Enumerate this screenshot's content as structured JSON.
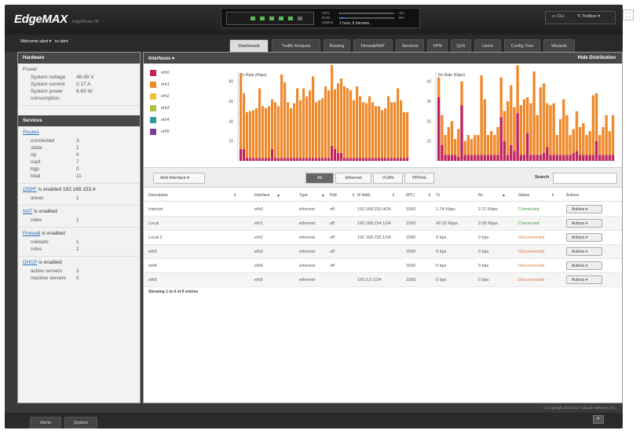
{
  "app": {
    "brand": "EdgeMAX",
    "model": "EdgeRouter 6P"
  },
  "status": {
    "ports": [
      true,
      true,
      true,
      true,
      true,
      false
    ],
    "cpu_label": "CPU",
    "cpu_pct": "1%",
    "cpu_fill": 0.01,
    "ram_label": "RAM",
    "ram_pct": "9%",
    "ram_fill": 0.09,
    "uptime_label": "Uptime",
    "uptime_value": "1 hour, 6 minutes"
  },
  "tools": {
    "cli": "CLI",
    "toolbox": "Toolbox"
  },
  "nav": {
    "welcome": "Welcome ubnt",
    "to": "to ubnt",
    "tabs": [
      "Dashboard",
      "Traffic Analysis",
      "Routing",
      "Firewall/NAT",
      "Services",
      "VPN",
      "QoS",
      "Users",
      "Config Tree",
      "Wizards"
    ],
    "active": "Dashboard"
  },
  "sidebar": {
    "hardware_title": "Hardware",
    "power_title": "Power",
    "power": [
      {
        "k": "System voltage",
        "v": "48.49 V"
      },
      {
        "k": "System current",
        "v": "0.17 A"
      },
      {
        "k": "System power",
        "v": "8.63 W"
      },
      {
        "k": "consumption",
        "v": ""
      }
    ],
    "services_title": "Services",
    "routes_title": "Routes",
    "routes": [
      {
        "k": "connected",
        "v": "3"
      },
      {
        "k": "static",
        "v": "1"
      },
      {
        "k": "rip",
        "v": "0"
      },
      {
        "k": "ospf",
        "v": "7"
      },
      {
        "k": "bgp",
        "v": "0"
      },
      {
        "k": "total",
        "v": "11"
      }
    ],
    "ospf_link": "OSPF",
    "ospf_text": "is enabled",
    "ospf_ip": "192.168.153.4",
    "ospf_rows": [
      {
        "k": "areas",
        "v": "1"
      }
    ],
    "nat_link": "NAT",
    "nat_text": "is enabled",
    "nat_rows": [
      {
        "k": "rules",
        "v": "1"
      }
    ],
    "fw_link": "Firewall",
    "fw_text": "is enabled",
    "fw_rows": [
      {
        "k": "rulesets",
        "v": "1"
      },
      {
        "k": "rules",
        "v": "2"
      }
    ],
    "dhcp_link": "DHCP",
    "dhcp_text": "is enabled",
    "dhcp_rows": [
      {
        "k": "active servers",
        "v": "2"
      },
      {
        "k": "inactive servers",
        "v": "0"
      }
    ]
  },
  "interfaces": {
    "title": "Interfaces",
    "hide": "Hide Distribution",
    "legend": [
      {
        "name": "eth0",
        "color": "#c0245c"
      },
      {
        "name": "eth1",
        "color": "#ee8a2e"
      },
      {
        "name": "eth2",
        "color": "#f0c23c"
      },
      {
        "name": "eth3",
        "color": "#a9c23f"
      },
      {
        "name": "eth4",
        "color": "#2a9d9a"
      },
      {
        "name": "eth5",
        "color": "#7b3f9a"
      }
    ]
  },
  "chart_data": [
    {
      "type": "bar",
      "title": "Tx Rate (Kbps)",
      "ylim": [
        0,
        90
      ],
      "yticks": [
        20,
        40,
        60,
        80
      ],
      "series": [
        {
          "name": "eth0",
          "values": [
            12,
            12,
            3,
            3,
            3,
            3,
            3,
            3,
            3,
            3,
            12,
            3,
            3,
            3,
            3,
            3,
            3,
            3,
            3,
            3,
            3,
            3,
            3,
            3,
            3,
            3,
            3,
            3,
            3,
            15,
            12,
            8,
            8,
            3,
            3,
            3,
            3,
            3,
            3,
            3,
            3,
            3,
            3,
            3,
            3,
            3,
            3,
            3,
            3,
            3,
            3,
            3,
            3,
            3
          ]
        },
        {
          "name": "eth1",
          "values": [
            76,
            56,
            46,
            47,
            48,
            50,
            70,
            52,
            50,
            52,
            50,
            56,
            52,
            84,
            76,
            56,
            50,
            55,
            70,
            58,
            70,
            62,
            68,
            82,
            56,
            58,
            60,
            72,
            68,
            86,
            60,
            70,
            75,
            72,
            70,
            68,
            58,
            72,
            62,
            56,
            55,
            62,
            56,
            52,
            52,
            48,
            50,
            62,
            56,
            56,
            70,
            58,
            46,
            46
          ]
        }
      ]
    },
    {
      "type": "bar",
      "title": "Rx Rate (Kbps)",
      "ylim": [
        0,
        45
      ],
      "yticks": [
        10,
        20,
        30,
        40
      ],
      "series": [
        {
          "name": "eth0",
          "values": [
            32,
            8,
            3,
            3,
            3,
            3,
            2,
            28,
            3,
            3,
            3,
            3,
            3,
            3,
            3,
            3,
            3,
            3,
            3,
            22,
            10,
            3,
            8,
            5,
            24,
            3,
            3,
            14,
            3,
            3,
            3,
            3,
            4,
            7,
            3,
            3,
            3,
            3,
            3,
            3,
            3,
            4,
            5,
            3,
            3,
            3,
            3,
            3,
            10,
            3,
            3,
            3,
            3,
            3
          ]
        },
        {
          "name": "eth1",
          "values": [
            10,
            15,
            10,
            14,
            17,
            8,
            14,
            12,
            7,
            10,
            8,
            10,
            10,
            40,
            28,
            10,
            12,
            10,
            14,
            20,
            15,
            27,
            30,
            22,
            40,
            25,
            28,
            18,
            26,
            42,
            20,
            34,
            35,
            22,
            25,
            26,
            10,
            18,
            28,
            20,
            10,
            12,
            20,
            14,
            16,
            10,
            12,
            30,
            24,
            10,
            14,
            20,
            12,
            20
          ]
        }
      ]
    }
  ],
  "toolbar": {
    "add": "Add Interface",
    "filters": [
      "All",
      "Ethernet",
      "VLAN",
      "PPPoE"
    ],
    "search": "Search"
  },
  "table": {
    "headers": [
      "Description",
      "Interface",
      "Type",
      "PoE",
      "IP Addr",
      "MTU",
      "Tx",
      "Rx",
      "Status",
      "Actions"
    ],
    "rows": [
      {
        "desc": "Internet",
        "iface": "eth0",
        "type": "ethernet",
        "poe": "off",
        "ip": "192.168.153.4/24",
        "mtu": "1500",
        "tx": "1.74 Kbps",
        "rx": "2.17 Kbps",
        "status": "Connected",
        "ok": true
      },
      {
        "desc": "Local",
        "iface": "eth1",
        "type": "ethernet",
        "poe": "off",
        "ip": "192.168.154.1/24",
        "mtu": "1500",
        "tx": "49.32 Kbps",
        "rx": "2.05 Kbps",
        "status": "Connected",
        "ok": true
      },
      {
        "desc": "Local 2",
        "iface": "eth2",
        "type": "ethernet",
        "poe": "off",
        "ip": "192.168.155.1/24",
        "mtu": "1500",
        "tx": "0 bps",
        "rx": "0 bps",
        "status": "Disconnected",
        "ok": false
      },
      {
        "desc": "eth3",
        "iface": "eth3",
        "type": "ethernet",
        "poe": "off",
        "ip": "",
        "mtu": "1500",
        "tx": "0 bps",
        "rx": "0 bps",
        "status": "Disconnected",
        "ok": false
      },
      {
        "desc": "eth4",
        "iface": "eth4",
        "type": "ethernet",
        "poe": "off",
        "ip": "",
        "mtu": "1500",
        "tx": "0 bps",
        "rx": "0 bps",
        "status": "Disconnected",
        "ok": false
      },
      {
        "desc": "eth5",
        "iface": "eth5",
        "type": "ethernet",
        "poe": "",
        "ip": "192.0.2.1/24",
        "mtu": "1500",
        "tx": "0 bps",
        "rx": "0 bps",
        "status": "Disconnected",
        "ok": false
      }
    ],
    "action_label": "Actions",
    "showing": "Showing 1 to 6 of 6 entries"
  },
  "footer": {
    "copyright": "© Copyright 2012-2017 Ubiquiti Networks, Inc."
  },
  "bottom": {
    "tabs": [
      "Alerts",
      "System"
    ]
  }
}
